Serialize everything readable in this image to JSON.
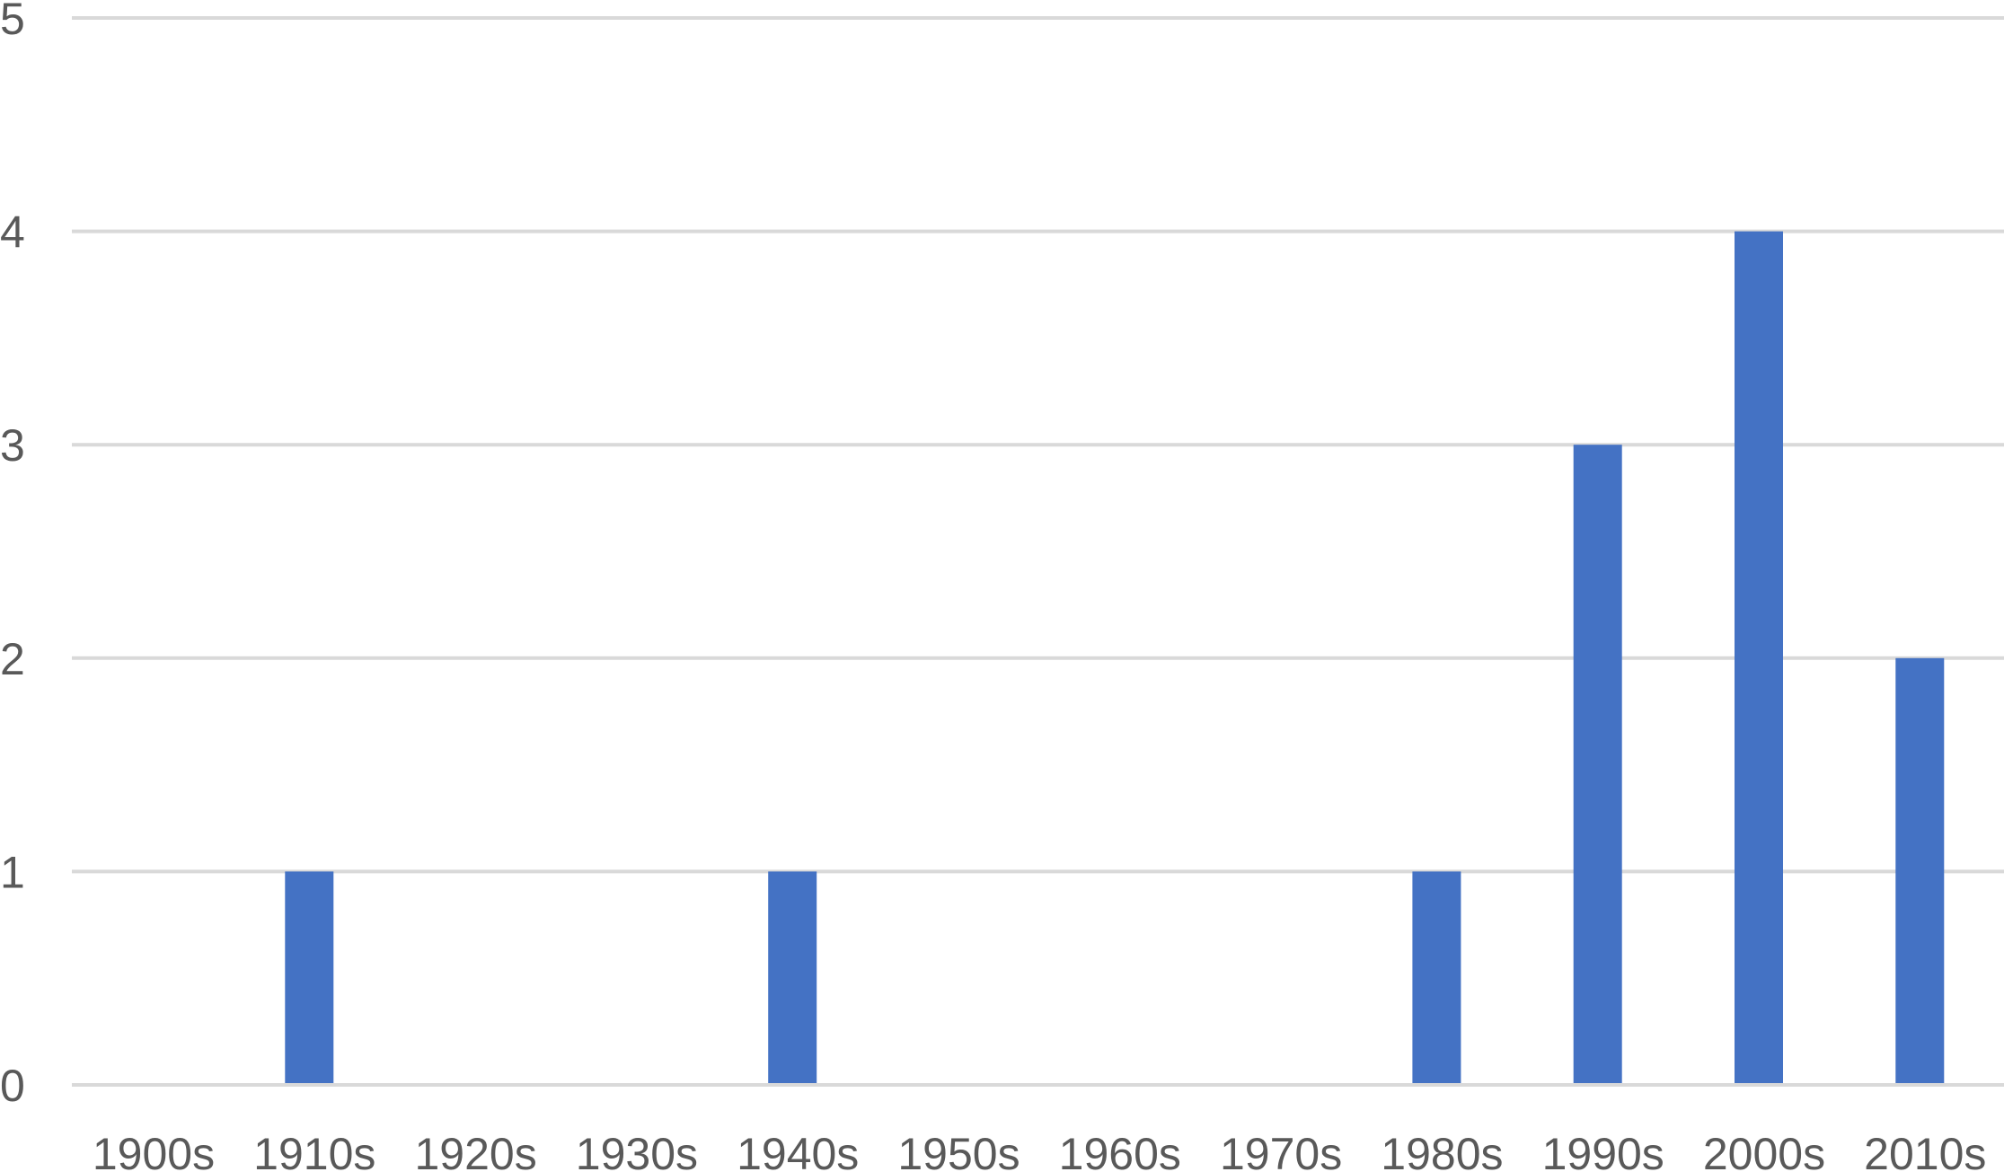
{
  "chart_data": {
    "type": "bar",
    "categories": [
      "1900s",
      "1910s",
      "1920s",
      "1930s",
      "1940s",
      "1950s",
      "1960s",
      "1970s",
      "1980s",
      "1990s",
      "2000s",
      "2010s"
    ],
    "values": [
      0,
      1,
      0,
      0,
      1,
      0,
      0,
      0,
      1,
      3,
      4,
      2
    ],
    "y_ticks": [
      "0",
      "1",
      "2",
      "3",
      "4",
      "5"
    ],
    "ylim": [
      0,
      5
    ],
    "grid": true,
    "legend": false,
    "bar_color": "#4472c4",
    "grid_color": "#d9d9d9",
    "tick_color": "#595959"
  }
}
